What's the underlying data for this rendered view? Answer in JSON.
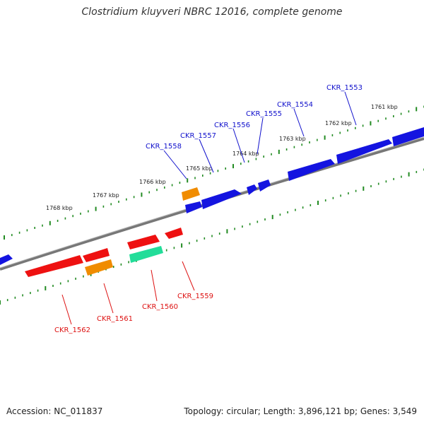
{
  "title": "Clostridium kluyveri NBRC 12016, complete genome",
  "accession": "Accession: NC_011837",
  "summary": "Topology: circular; Length: 3,896,121 bp; Genes: 3,549",
  "colors": {
    "backbone": "#777777",
    "tick": "#228b22",
    "forward_label": "#1010cc",
    "reverse_label": "#dd1111",
    "blue": "#1414e0",
    "red": "#ee1111",
    "orange": "#f08c00",
    "teal": "#22dd99"
  },
  "scale_labels": [
    "1761 kbp",
    "1762 kbp",
    "1763 kbp",
    "1764 kbp",
    "1765 kbp",
    "1766 kbp",
    "1767 kbp",
    "1768 kbp"
  ],
  "gene_labels_top": [
    "CKR_1553",
    "CKR_1554",
    "CKR_1555",
    "CKR_1556",
    "CKR_1557",
    "CKR_1558"
  ],
  "gene_labels_bottom": [
    "CKR_1559",
    "CKR_1560",
    "CKR_1561",
    "CKR_1562"
  ]
}
